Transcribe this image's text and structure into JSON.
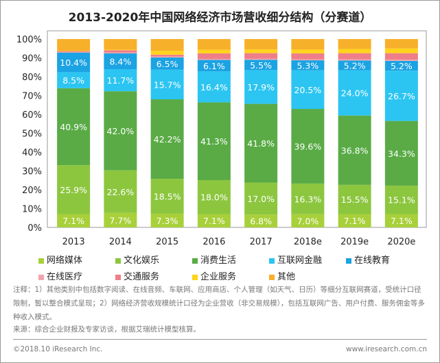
{
  "chart_data": {
    "type": "bar",
    "stacked": true,
    "title": "2013-2020年中国网络经济市场营收细分结构（分赛道）",
    "categories": [
      "2013",
      "2014",
      "2015",
      "2016",
      "2017",
      "2018e",
      "2019e",
      "2020e"
    ],
    "ylim": [
      0,
      100
    ],
    "yticks": [
      "0%",
      "10%",
      "20%",
      "30%",
      "40%",
      "50%",
      "60%",
      "70%",
      "80%",
      "90%",
      "100%"
    ],
    "legend_position": "bottom",
    "series": [
      {
        "name": "网络媒体",
        "color": "#a8d03a",
        "labeled": true,
        "values": [
          7.1,
          7.7,
          7.3,
          7.1,
          6.8,
          7.0,
          7.1,
          7.1
        ]
      },
      {
        "name": "文化娱乐",
        "color": "#8cc63f",
        "labeled": true,
        "values": [
          25.9,
          22.6,
          18.5,
          18.0,
          17.0,
          16.3,
          15.5,
          15.1
        ]
      },
      {
        "name": "消费生活",
        "color": "#5aab46",
        "labeled": true,
        "values": [
          40.9,
          42.0,
          42.2,
          41.3,
          41.8,
          39.6,
          36.8,
          34.3
        ]
      },
      {
        "name": "互联网金融",
        "color": "#2cc5f2",
        "labeled": true,
        "values": [
          8.5,
          11.7,
          15.7,
          16.4,
          17.9,
          20.5,
          24.0,
          26.7
        ]
      },
      {
        "name": "在线教育",
        "color": "#1ba3e3",
        "labeled": true,
        "values": [
          10.4,
          8.4,
          6.5,
          6.1,
          5.5,
          5.3,
          5.2,
          5.2
        ]
      },
      {
        "name": "在线医疗",
        "color": "#f2a5ad",
        "labeled": false,
        "values": [
          0.3,
          0.4,
          0.5,
          0.5,
          0.5,
          0.5,
          0.6,
          0.6
        ]
      },
      {
        "name": "交通服务",
        "color": "#ee7f8a",
        "labeled": false,
        "values": [
          0.5,
          1.3,
          1.0,
          3.0,
          3.0,
          3.2,
          3.3,
          3.5
        ]
      },
      {
        "name": "企业服务",
        "color": "#ffd41c",
        "labeled": false,
        "values": [
          0.2,
          0.3,
          2.0,
          1.9,
          2.0,
          2.0,
          2.2,
          2.5
        ]
      },
      {
        "name": "其他",
        "color": "#f7b02a",
        "labeled": false,
        "values": [
          6.2,
          5.6,
          6.3,
          5.7,
          5.5,
          5.6,
          5.3,
          5.0
        ]
      }
    ]
  },
  "notes": "注释：1）其他类别中包括数字阅读、在线音频、车联网、应用商店、个人管理（如天气、日历）等细分互联网赛道，受统计口径限制，暂以整合模式呈现；2）网络经济营收规模统计口径为企业营收（非交易规模），包括互联网广告、用户付费、服务佣金等多种收入模式。",
  "source": "来源：综合企业财报及专家访谈，根据艾瑞统计模型核算。",
  "copyright": "©2018.10 iResearch Inc.",
  "website": "www.iresearch.com.cn"
}
